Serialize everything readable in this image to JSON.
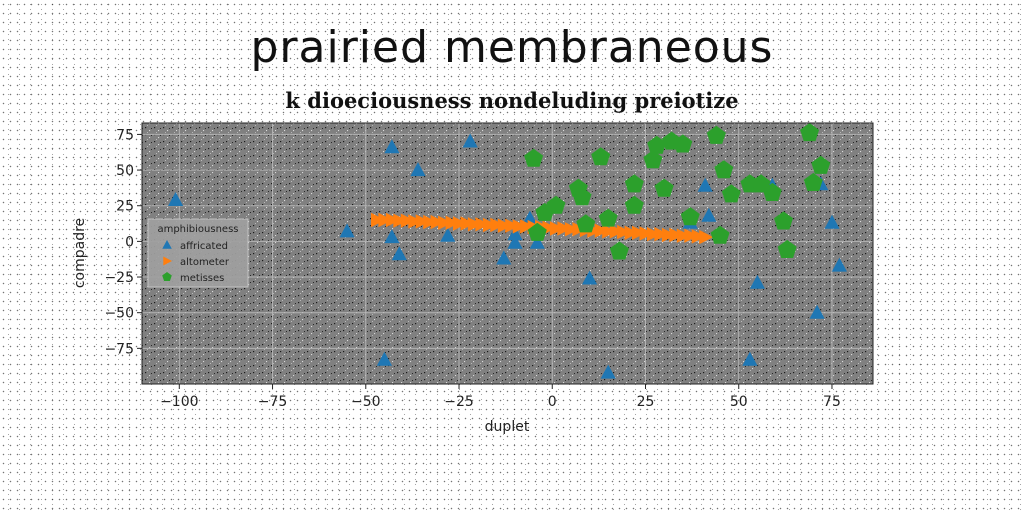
{
  "title": "prairied membraneous",
  "subtitle": "k dioeciousness nondeluding preiotize",
  "chart_data": {
    "type": "scatter",
    "xlabel": "duplet",
    "ylabel": "compadre",
    "xlim": [
      -110,
      86
    ],
    "ylim": [
      -100,
      83
    ],
    "xticks": [
      -100,
      -75,
      -50,
      -25,
      0,
      25,
      50,
      75
    ],
    "yticks": [
      -75,
      -50,
      -25,
      0,
      25,
      50,
      75
    ],
    "xtick_labels": [
      "−100",
      "−75",
      "−50",
      "−25",
      "0",
      "25",
      "50",
      "75"
    ],
    "ytick_labels": [
      "−75",
      "−50",
      "−25",
      "0",
      "25",
      "50",
      "75"
    ],
    "grid": true,
    "legend_title": "amphibiousness",
    "legend_position": "center-left",
    "colors": {
      "plot_bg": "#808080",
      "affricated": "#1f77b4",
      "altometer": "#ff7f0e",
      "metisses": "#2ca02c"
    },
    "series": [
      {
        "name": "affricated",
        "marker": "triangle",
        "points": [
          [
            -101,
            29
          ],
          [
            -43,
            66
          ],
          [
            -36,
            50
          ],
          [
            -22,
            70
          ],
          [
            -55,
            7
          ],
          [
            -43,
            3
          ],
          [
            -41,
            -9
          ],
          [
            -28,
            4
          ],
          [
            -13,
            -12
          ],
          [
            -10,
            5
          ],
          [
            -10,
            -1
          ],
          [
            -6,
            16
          ],
          [
            -4,
            -1
          ],
          [
            -45,
            -83
          ],
          [
            10,
            -26
          ],
          [
            15,
            -92
          ],
          [
            37,
            13
          ],
          [
            41,
            39
          ],
          [
            42,
            18
          ],
          [
            59,
            39
          ],
          [
            72,
            40
          ],
          [
            71,
            -50
          ],
          [
            75,
            13
          ],
          [
            77,
            -17
          ],
          [
            55,
            -29
          ],
          [
            53,
            -83
          ]
        ]
      },
      {
        "name": "altometer",
        "marker": "triangle-right",
        "points": [
          [
            -47,
            15
          ],
          [
            -45,
            15
          ],
          [
            -43,
            15
          ],
          [
            -41,
            14.5
          ],
          [
            -39,
            14.5
          ],
          [
            -37,
            14
          ],
          [
            -35,
            14
          ],
          [
            -33,
            13.5
          ],
          [
            -31,
            13.5
          ],
          [
            -29,
            13
          ],
          [
            -27,
            13
          ],
          [
            -25,
            12.5
          ],
          [
            -23,
            12.5
          ],
          [
            -21,
            12
          ],
          [
            -19,
            12
          ],
          [
            -17,
            11.5
          ],
          [
            -15,
            11.5
          ],
          [
            -13,
            11
          ],
          [
            -11,
            11
          ],
          [
            -9,
            10.5
          ],
          [
            -7,
            10.5
          ],
          [
            -5,
            10
          ],
          [
            -3,
            10
          ],
          [
            -1,
            9.5
          ],
          [
            1,
            9
          ],
          [
            3,
            9
          ],
          [
            5,
            8.5
          ],
          [
            7,
            8.5
          ],
          [
            9,
            8
          ],
          [
            11,
            7.5
          ],
          [
            13,
            7.5
          ],
          [
            15,
            7
          ],
          [
            17,
            7
          ],
          [
            19,
            6.5
          ],
          [
            21,
            6
          ],
          [
            23,
            6
          ],
          [
            25,
            5.5
          ],
          [
            27,
            5
          ],
          [
            29,
            5
          ],
          [
            31,
            4.5
          ],
          [
            33,
            4.5
          ],
          [
            35,
            4
          ],
          [
            37,
            4
          ],
          [
            39,
            3.5
          ],
          [
            41,
            3
          ]
        ]
      },
      {
        "name": "metisses",
        "marker": "pentagon",
        "points": [
          [
            -5,
            58
          ],
          [
            -4,
            6
          ],
          [
            -2,
            20
          ],
          [
            1,
            25
          ],
          [
            7,
            37
          ],
          [
            8,
            31
          ],
          [
            9,
            12
          ],
          [
            13,
            59
          ],
          [
            15,
            16
          ],
          [
            18,
            -7
          ],
          [
            22,
            40
          ],
          [
            22,
            25
          ],
          [
            27,
            57
          ],
          [
            28,
            67
          ],
          [
            30,
            37
          ],
          [
            32,
            70
          ],
          [
            35,
            68
          ],
          [
            37,
            17
          ],
          [
            44,
            74
          ],
          [
            45,
            4
          ],
          [
            46,
            50
          ],
          [
            48,
            33
          ],
          [
            53,
            40
          ],
          [
            56,
            40
          ],
          [
            59,
            34
          ],
          [
            62,
            14
          ],
          [
            63,
            -6
          ],
          [
            69,
            76
          ],
          [
            70,
            41
          ],
          [
            72,
            53
          ]
        ]
      }
    ]
  }
}
